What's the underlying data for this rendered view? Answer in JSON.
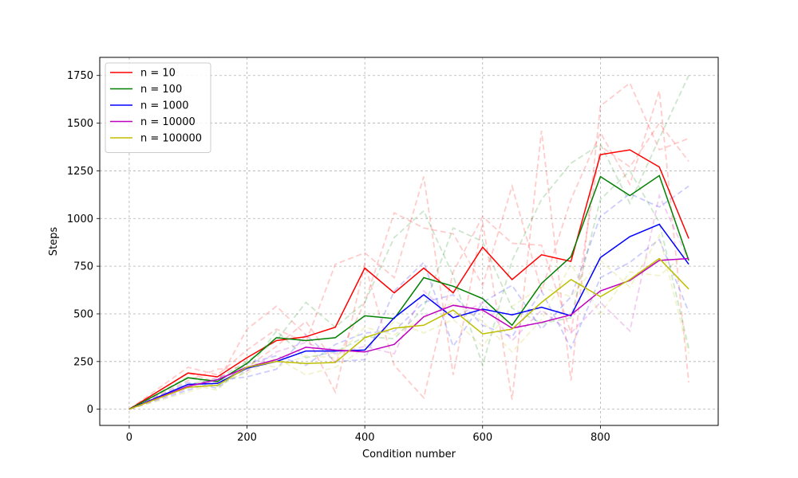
{
  "chart_data": {
    "type": "line",
    "title": "",
    "xlabel": "Condition number",
    "ylabel": "Steps",
    "xlim": [
      -50,
      1000
    ],
    "ylim": [
      -85,
      1845
    ],
    "xticks": [
      0,
      200,
      400,
      600,
      800
    ],
    "yticks": [
      0,
      250,
      500,
      750,
      1000,
      1250,
      1500,
      1750
    ],
    "grid": true,
    "legend_position": "upper-left",
    "x": [
      0,
      100,
      150,
      200,
      250,
      300,
      350,
      400,
      450,
      500,
      550,
      600,
      650,
      700,
      750,
      800,
      850,
      900,
      950
    ],
    "series": [
      {
        "name": "n = 10",
        "color": "#ff0000",
        "values": [
          0,
          190,
          170,
          270,
          360,
          380,
          430,
          740,
          610,
          740,
          610,
          850,
          680,
          810,
          775,
          1335,
          1360,
          1270,
          895
        ]
      },
      {
        "name": "n = 100",
        "color": "#008000",
        "values": [
          0,
          165,
          145,
          240,
          375,
          360,
          375,
          490,
          475,
          690,
          645,
          580,
          440,
          660,
          800,
          1220,
          1120,
          1225,
          780
        ]
      },
      {
        "name": "n = 1000",
        "color": "#0000ff",
        "values": [
          0,
          130,
          135,
          215,
          250,
          305,
          305,
          310,
          480,
          600,
          480,
          525,
          495,
          535,
          490,
          795,
          905,
          970,
          760
        ]
      },
      {
        "name": "n = 10000",
        "color": "#bf00bf",
        "values": [
          0,
          120,
          155,
          220,
          260,
          325,
          310,
          300,
          340,
          485,
          545,
          520,
          425,
          455,
          495,
          620,
          675,
          780,
          790
        ]
      },
      {
        "name": "n = 100000",
        "color": "#bfbf00",
        "values": [
          0,
          115,
          125,
          220,
          250,
          240,
          245,
          375,
          425,
          440,
          520,
          395,
          420,
          560,
          680,
          590,
          680,
          790,
          630
        ]
      }
    ],
    "trial_series": [
      {
        "color": "#ff0000",
        "values": [
          0,
          220,
          180,
          310,
          420,
          350,
          760,
          820,
          690,
          1220,
          180,
          980,
          50,
          1460,
          150,
          1590,
          1710,
          1360,
          1420
        ]
      },
      {
        "color": "#ff0000",
        "values": [
          0,
          150,
          210,
          220,
          330,
          460,
          240,
          560,
          1030,
          950,
          920,
          650,
          1170,
          620,
          1100,
          1450,
          1180,
          1670,
          140
        ]
      },
      {
        "color": "#ff0000",
        "values": [
          0,
          190,
          140,
          420,
          540,
          390,
          90,
          760,
          230,
          60,
          720,
          1010,
          870,
          860,
          400,
          1380,
          1270,
          1500,
          1300
        ]
      },
      {
        "color": "#008000",
        "values": [
          0,
          130,
          160,
          250,
          360,
          560,
          430,
          560,
          900,
          1040,
          700,
          230,
          780,
          1100,
          1290,
          1390,
          1080,
          1420,
          1750
        ]
      },
      {
        "color": "#008000",
        "values": [
          0,
          170,
          120,
          200,
          410,
          270,
          300,
          380,
          370,
          530,
          950,
          880,
          530,
          450,
          480,
          1100,
          1250,
          980,
          320
        ]
      },
      {
        "color": "#0000ff",
        "values": [
          0,
          100,
          150,
          170,
          210,
          390,
          250,
          260,
          620,
          770,
          330,
          560,
          650,
          420,
          590,
          1010,
          1130,
          1060,
          1170
        ]
      },
      {
        "color": "#0000ff",
        "values": [
          0,
          140,
          110,
          240,
          280,
          230,
          340,
          400,
          410,
          560,
          600,
          440,
          380,
          620,
          320,
          690,
          770,
          890,
          510
        ]
      },
      {
        "color": "#bf00bf",
        "values": [
          0,
          110,
          170,
          200,
          300,
          350,
          290,
          330,
          290,
          620,
          480,
          560,
          360,
          520,
          400,
          560,
          410,
          1120,
          780
        ]
      },
      {
        "color": "#bfbf00",
        "values": [
          0,
          90,
          140,
          190,
          270,
          180,
          220,
          320,
          460,
          400,
          470,
          330,
          540,
          640,
          590,
          780,
          640,
          910,
          290
        ]
      },
      {
        "color": "#bfbf00",
        "values": [
          0,
          130,
          100,
          250,
          220,
          280,
          270,
          430,
          390,
          480,
          560,
          460,
          300,
          470,
          760,
          500,
          720,
          700,
          830
        ]
      }
    ]
  }
}
